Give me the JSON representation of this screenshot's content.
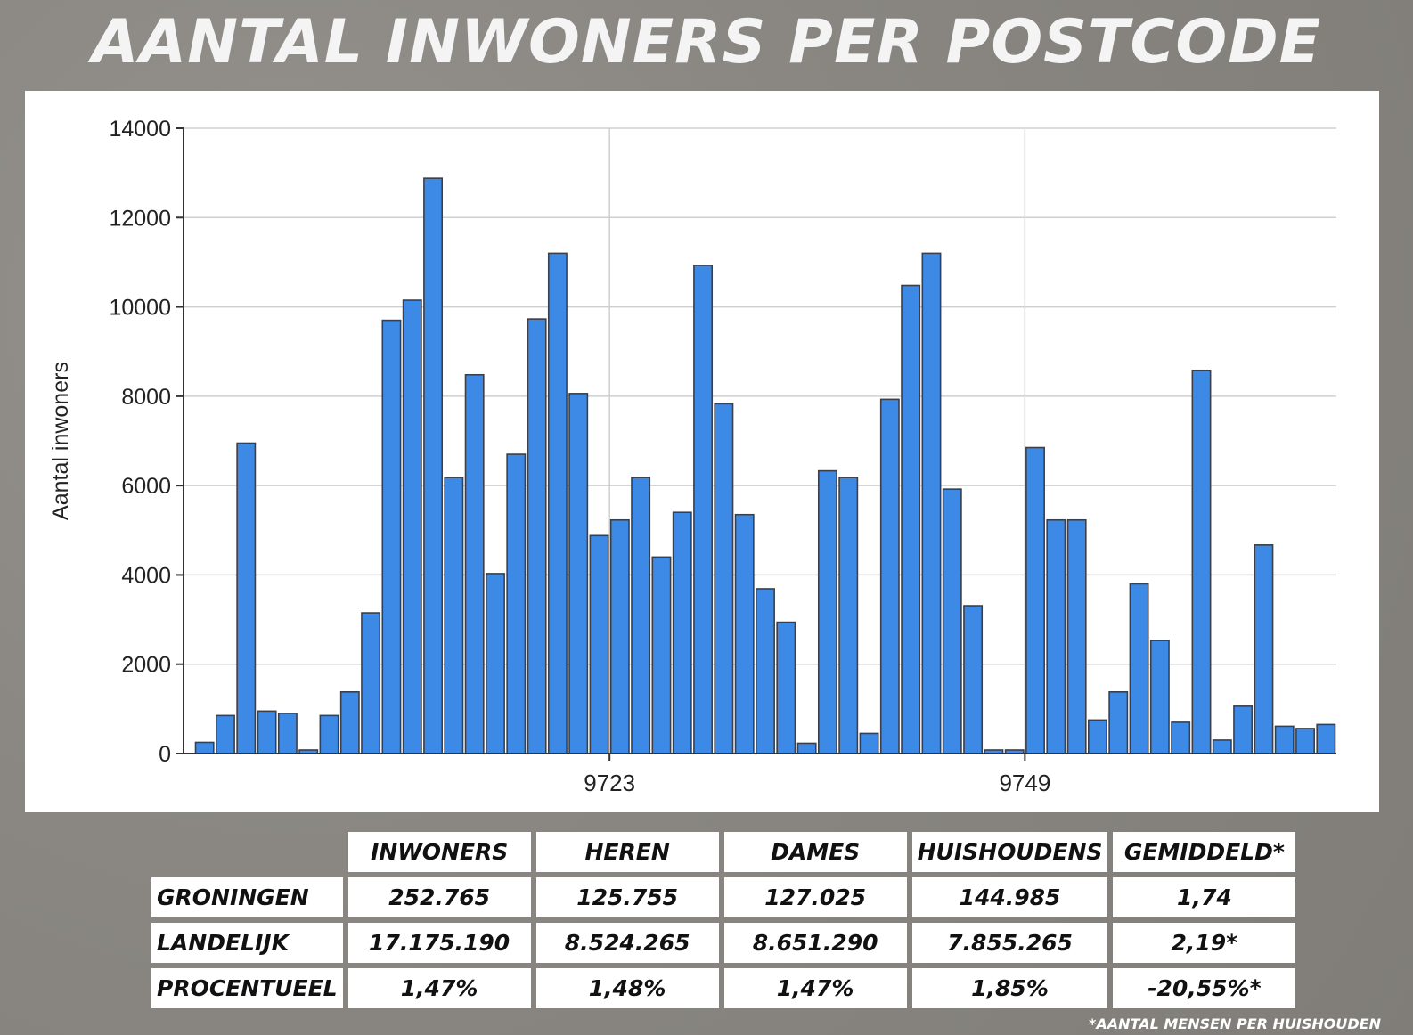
{
  "title": "AANTAL INWONERS PER POSTCODE",
  "chart_data": {
    "type": "bar",
    "ylabel": "Aantal inwoners",
    "xlabel": "",
    "ylim": [
      0,
      14000
    ],
    "yticks": [
      0,
      2000,
      4000,
      6000,
      8000,
      10000,
      12000,
      14000
    ],
    "xtick_labels": [
      {
        "label": "9723",
        "after_bar_index": 19
      },
      {
        "label": "9749",
        "after_bar_index": 39
      }
    ],
    "grid": true,
    "bar_color": "#3d8ae6",
    "values": [
      250,
      850,
      6950,
      950,
      900,
      80,
      850,
      1380,
      3150,
      9700,
      10150,
      12880,
      6180,
      8480,
      4030,
      6700,
      9730,
      11200,
      8060,
      4880,
      5230,
      6180,
      4400,
      5400,
      10930,
      7830,
      5350,
      3690,
      2940,
      230,
      6330,
      6180,
      450,
      7930,
      10480,
      11200,
      5920,
      3310,
      80,
      80,
      6850,
      5230,
      5230,
      750,
      1380,
      3800,
      2530,
      700,
      8580,
      300,
      1060,
      4670,
      610,
      560,
      650
    ]
  },
  "table": {
    "headers": [
      "INWONERS",
      "HEREN",
      "DAMES",
      "HUISHOUDENS",
      "GEMIDDELD*"
    ],
    "rows": [
      {
        "label": "GRONINGEN",
        "values": [
          "252.765",
          "125.755",
          "127.025",
          "144.985",
          "1,74"
        ]
      },
      {
        "label": "LANDELIJK",
        "values": [
          "17.175.190",
          "8.524.265",
          "8.651.290",
          "7.855.265",
          "2,19*"
        ]
      },
      {
        "label": "PROCENTUEEL",
        "values": [
          "1,47%",
          "1,48%",
          "1,47%",
          "1,85%",
          "-20,55%*"
        ]
      }
    ]
  },
  "footnote": "*AANTAL MENSEN PER HUISHOUDEN"
}
